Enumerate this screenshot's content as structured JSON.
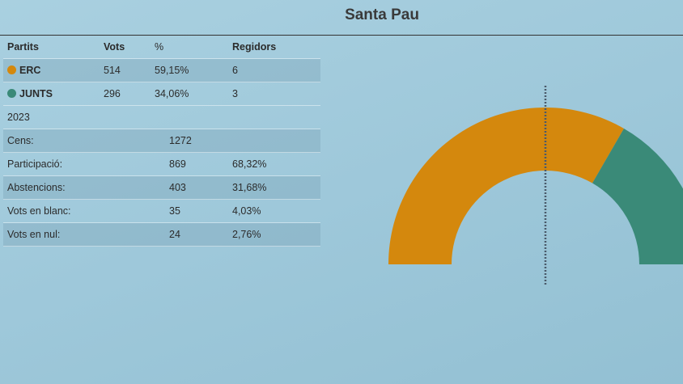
{
  "title": "Santa Pau",
  "table": {
    "headers": [
      "Partits",
      "Vots",
      "%",
      "Regidors"
    ],
    "parties": [
      {
        "name": "ERC",
        "votes": "514",
        "pct": "59,15%",
        "seats": "6",
        "color": "#d4880d"
      },
      {
        "name": "JUNTS",
        "votes": "296",
        "pct": "34,06%",
        "seats": "3",
        "color": "#3a8a78"
      }
    ],
    "year": "2023",
    "stats": [
      {
        "label": "Cens:",
        "value": "1272",
        "pct": ""
      },
      {
        "label": "Participació:",
        "value": "869",
        "pct": "68,32%"
      },
      {
        "label": "Abstencions:",
        "value": "403",
        "pct": "31,68%"
      },
      {
        "label": "Vots en blanc:",
        "value": "35",
        "pct": "4,03%"
      },
      {
        "label": "Vots en nul:",
        "value": "24",
        "pct": "2,76%"
      }
    ]
  },
  "chart_data": {
    "type": "pie",
    "variant": "semicircle-parliament",
    "categories": [
      "ERC",
      "JUNTS"
    ],
    "values": [
      6,
      3
    ],
    "colors": [
      "#d4880d",
      "#3a8a78"
    ],
    "total_seats": 9,
    "majority_line": "dotted vertical at center"
  }
}
